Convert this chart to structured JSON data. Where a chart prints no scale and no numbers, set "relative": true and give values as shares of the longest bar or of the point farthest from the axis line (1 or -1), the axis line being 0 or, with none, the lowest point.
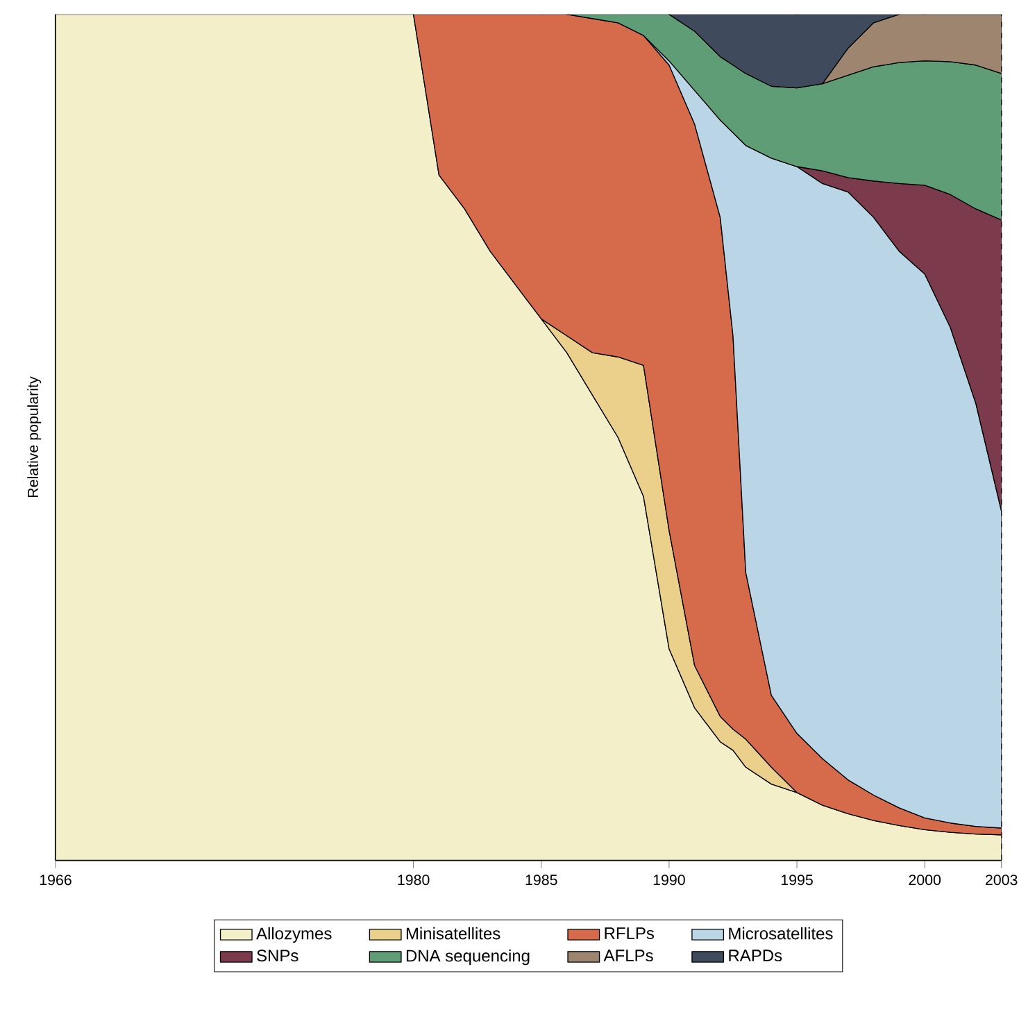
{
  "chart_data": {
    "type": "area",
    "stacked": true,
    "relative": true,
    "ylabel": "Relative popularity",
    "x": [
      1966,
      1980,
      1981,
      1982,
      1983,
      1984,
      1985,
      1986,
      1987,
      1988,
      1989,
      1990,
      1991,
      1992,
      1992.5,
      1993,
      1994,
      1995,
      1996,
      1997,
      1998,
      1999,
      2000,
      2001,
      2002,
      2003
    ],
    "xlim": [
      1966,
      2003
    ],
    "xticks": [
      1966,
      1980,
      1985,
      1990,
      1995,
      2000,
      2003
    ],
    "grid": "x",
    "legend": "bottom",
    "series": [
      {
        "name": "Allozymes",
        "color": "#f3efc8",
        "values": [
          1,
          1,
          0.81,
          0.77,
          0.72,
          0.68,
          0.64,
          0.6,
          0.55,
          0.5,
          0.43,
          0.25,
          0.18,
          0.14,
          0.13,
          0.11,
          0.09,
          0.08,
          0.065,
          0.055,
          0.047,
          0.041,
          0.036,
          0.033,
          0.031,
          0.03
        ]
      },
      {
        "name": "Minisatellites",
        "color": "#ead08a",
        "values": [
          null,
          null,
          null,
          null,
          null,
          null,
          0,
          0.02,
          0.05,
          0.095,
          0.155,
          0.14,
          0.05,
          0.03,
          0.025,
          0.033,
          0.02,
          0,
          null,
          null,
          null,
          null,
          null,
          null,
          null,
          null
        ]
      },
      {
        "name": "RFLPs",
        "color": "#d56b4b",
        "values": [
          null,
          0,
          0.19,
          0.23,
          0.28,
          0.32,
          0.36,
          0.38,
          0.395,
          0.395,
          0.39,
          0.55,
          0.64,
          0.59,
          0.465,
          0.197,
          0.085,
          0.07,
          0.055,
          0.04,
          0.03,
          0.021,
          0.014,
          0.011,
          0.009,
          0.008
        ]
      },
      {
        "name": "Microsatellites",
        "color": "#b9d5e6",
        "values": [
          null,
          null,
          null,
          null,
          null,
          null,
          null,
          null,
          null,
          null,
          0,
          0.005,
          0.04,
          0.115,
          0.24,
          0.505,
          0.635,
          0.67,
          0.68,
          0.695,
          0.683,
          0.658,
          0.643,
          0.586,
          0.5,
          0.375
        ]
      },
      {
        "name": "SNPs",
        "color": "#7b3b4c",
        "values": [
          null,
          null,
          null,
          null,
          null,
          null,
          null,
          null,
          null,
          null,
          null,
          null,
          null,
          null,
          null,
          null,
          null,
          0,
          0.015,
          0.017,
          0.043,
          0.08,
          0.105,
          0.157,
          0.23,
          0.344
        ]
      },
      {
        "name": "DNA sequencing",
        "color": "#5f9d77",
        "values": [
          null,
          null,
          null,
          null,
          null,
          null,
          null,
          0,
          0.005,
          0.01,
          0.025,
          0.055,
          0.07,
          0.075,
          0.08,
          0.085,
          0.085,
          0.093,
          0.103,
          0.121,
          0.135,
          0.143,
          0.147,
          0.157,
          0.17,
          0.173
        ]
      },
      {
        "name": "AFLPs",
        "color": "#9d8570",
        "values": [
          null,
          null,
          null,
          null,
          null,
          null,
          null,
          null,
          null,
          null,
          null,
          null,
          null,
          null,
          null,
          null,
          null,
          null,
          0,
          0.032,
          0.052,
          0.057,
          0.055,
          0.056,
          0.06,
          0.07
        ]
      },
      {
        "name": "RAPDs",
        "color": "#3f4b5d",
        "values": [
          null,
          null,
          null,
          null,
          null,
          null,
          null,
          null,
          null,
          null,
          null,
          0,
          0.02,
          0.05,
          0.06,
          0.07,
          0.085,
          0.087,
          0.082,
          0.04,
          0.01,
          0,
          null,
          null,
          null,
          null
        ]
      }
    ]
  }
}
